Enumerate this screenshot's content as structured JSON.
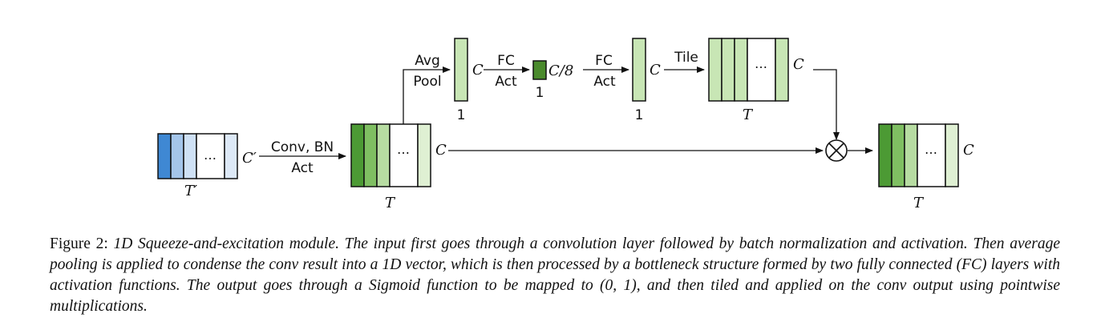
{
  "diagram": {
    "labels": {
      "conv_bn": "Conv, BN",
      "act_1": "Act",
      "avg": "Avg",
      "pool": "Pool",
      "fc_1": "FC",
      "act_2": "Act",
      "fc_2": "FC",
      "act_3": "Act",
      "tile": "Tile",
      "one_pool": "1",
      "one_fc1": "1",
      "one_fc2": "1",
      "c_prime": "C′",
      "t_prime": "T′",
      "c_conv": "C",
      "t_conv": "T",
      "c_pool": "C",
      "c_div8": "C/8",
      "c_fc2": "C",
      "c_tile": "C",
      "t_tile": "T",
      "c_out": "C",
      "t_out": "T",
      "ellipsis": "…"
    },
    "colors": {
      "input_dark": "#3f88d3",
      "input_mid": "#a4c5ea",
      "input_light": "#cfe1f5",
      "input_lightest": "#dde9f7",
      "green_dark": "#4c9a34",
      "green_mid": "#7fbf62",
      "green_light": "#b7dca2",
      "green_lightest": "#dff0d3",
      "green_vec": "#c8e6b5",
      "green_small": "#4a8a2c"
    }
  },
  "caption": {
    "label": "Figure 2:",
    "text": "1D Squeeze-and-excitation module. The input first goes through a convolution layer followed by batch normalization and activation. Then average pooling is applied to condense the conv result into a 1D vector, which is then processed by a bottleneck structure formed by two fully connected (FC) layers with activation functions. The output goes through a Sigmoid function to be mapped to (0, 1), and then tiled and applied on the conv output using pointwise multiplications."
  }
}
